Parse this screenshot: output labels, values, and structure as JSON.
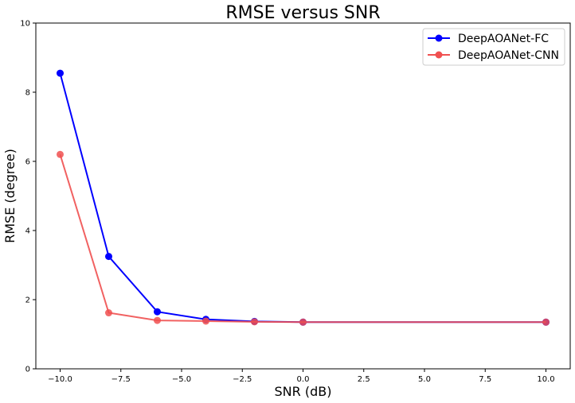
{
  "chart_data": {
    "type": "line",
    "title": "RMSE versus SNR",
    "xlabel": "SNR (dB)",
    "ylabel": "RMSE (degree)",
    "xlim": [
      -11,
      11
    ],
    "ylim": [
      0,
      10
    ],
    "xticks": [
      -10.0,
      -7.5,
      -5.0,
      -2.5,
      0.0,
      2.5,
      5.0,
      7.5,
      10.0
    ],
    "xtick_labels": [
      "−10.0",
      "−7.5",
      "−5.0",
      "−2.5",
      "0.0",
      "2.5",
      "5.0",
      "7.5",
      "10.0"
    ],
    "yticks": [
      0,
      2,
      4,
      6,
      8,
      10
    ],
    "ytick_labels": [
      "0",
      "2",
      "4",
      "6",
      "8",
      "10"
    ],
    "grid": false,
    "legend_position": "top-right",
    "series": [
      {
        "name": "DeepAOANet-FC",
        "color": "#0000ff",
        "marker": "circle",
        "x": [
          -10,
          -8,
          -6,
          -4,
          -2,
          0,
          10
        ],
        "y": [
          8.55,
          3.25,
          1.65,
          1.43,
          1.37,
          1.35,
          1.35
        ]
      },
      {
        "name": "DeepAOANet-CNN",
        "color": "#f05050",
        "marker": "circle",
        "x": [
          -10,
          -8,
          -6,
          -4,
          -2,
          0,
          10
        ],
        "y": [
          6.2,
          1.62,
          1.4,
          1.38,
          1.36,
          1.35,
          1.35
        ]
      }
    ]
  }
}
